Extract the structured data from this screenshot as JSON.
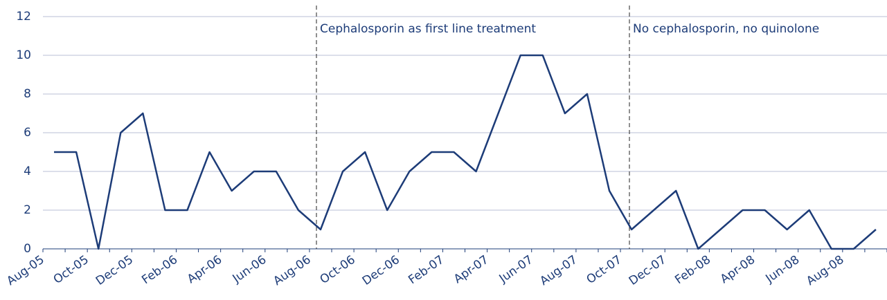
{
  "chart_data": {
    "type": "line",
    "categories": [
      "Aug-05",
      null,
      "Oct-05",
      null,
      "Dec-05",
      null,
      "Feb-06",
      null,
      "Apr-06",
      null,
      "Jun-06",
      null,
      "Aug-06",
      null,
      "Oct-06",
      null,
      "Dec-06",
      null,
      "Feb-07",
      null,
      "Apr-07",
      null,
      "Jun-07",
      null,
      "Aug-07",
      null,
      "Oct-07",
      null,
      "Dec-07",
      null,
      "Feb-08",
      null,
      "Apr-08",
      null,
      "Jun-08",
      null,
      "Aug-08",
      null
    ],
    "series": [
      {
        "color": "#1d3c78",
        "values": [
          5,
          5,
          0,
          6,
          7,
          2,
          2,
          5,
          3,
          4,
          4,
          2,
          1,
          4,
          5,
          2,
          4,
          5,
          5,
          4,
          7,
          10,
          10,
          7,
          8,
          3,
          1,
          2,
          3,
          0,
          1,
          2,
          2,
          1,
          2,
          0,
          0,
          1
        ]
      }
    ],
    "ylim": [
      0,
      12
    ],
    "yticks": [
      0,
      2,
      4,
      6,
      8,
      10,
      12
    ],
    "grid": true,
    "annotations": [
      "Cephalosporin as first line treatment",
      "No cephalosporin, no quinolone"
    ]
  }
}
